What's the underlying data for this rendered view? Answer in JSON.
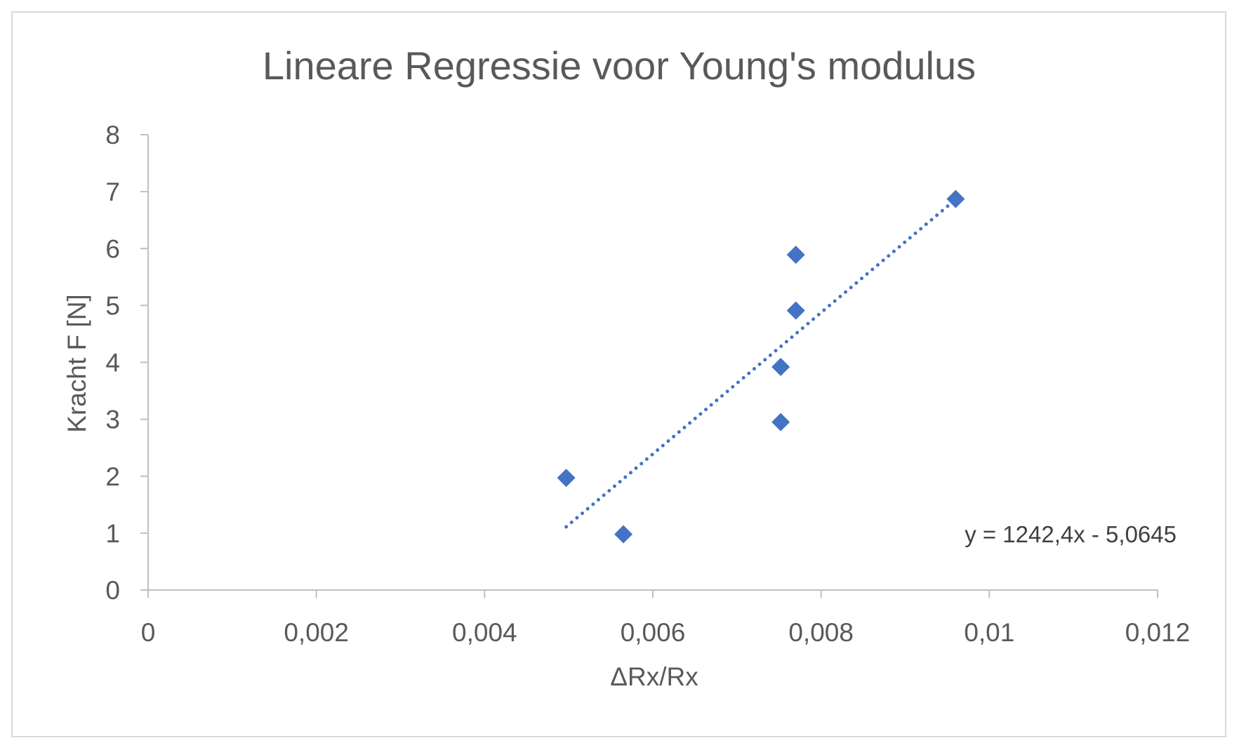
{
  "chart_data": {
    "type": "scatter",
    "title": "Lineare Regressie voor Young's modulus",
    "xlabel": "ΔRx/Rx",
    "ylabel": "Kracht F [N]",
    "xlim": [
      0,
      0.012
    ],
    "ylim": [
      0,
      8
    ],
    "x_ticks": [
      "0",
      "0,002",
      "0,004",
      "0,006",
      "0,008",
      "0,01",
      "0,012"
    ],
    "y_ticks": [
      "0",
      "1",
      "2",
      "3",
      "4",
      "5",
      "6",
      "7",
      "8"
    ],
    "grid": false,
    "legend": "none",
    "marker": "diamond",
    "series": [
      {
        "points": [
          {
            "x": 0.00497,
            "y": 1.97
          },
          {
            "x": 0.00565,
            "y": 0.98
          },
          {
            "x": 0.00752,
            "y": 2.95
          },
          {
            "x": 0.00752,
            "y": 3.92
          },
          {
            "x": 0.0077,
            "y": 4.91
          },
          {
            "x": 0.0077,
            "y": 5.89
          },
          {
            "x": 0.0096,
            "y": 6.87
          }
        ]
      }
    ],
    "trendline": {
      "style": "dotted",
      "slope": 1242.4,
      "intercept": -5.0645,
      "x_range": [
        0.00497,
        0.0096
      ],
      "label": "y = 1242,4x - 5,0645"
    },
    "colors": {
      "marker": "#4472c4",
      "trendline": "#4472c4",
      "axis": "#bfbfbf",
      "text": "#595959"
    }
  }
}
